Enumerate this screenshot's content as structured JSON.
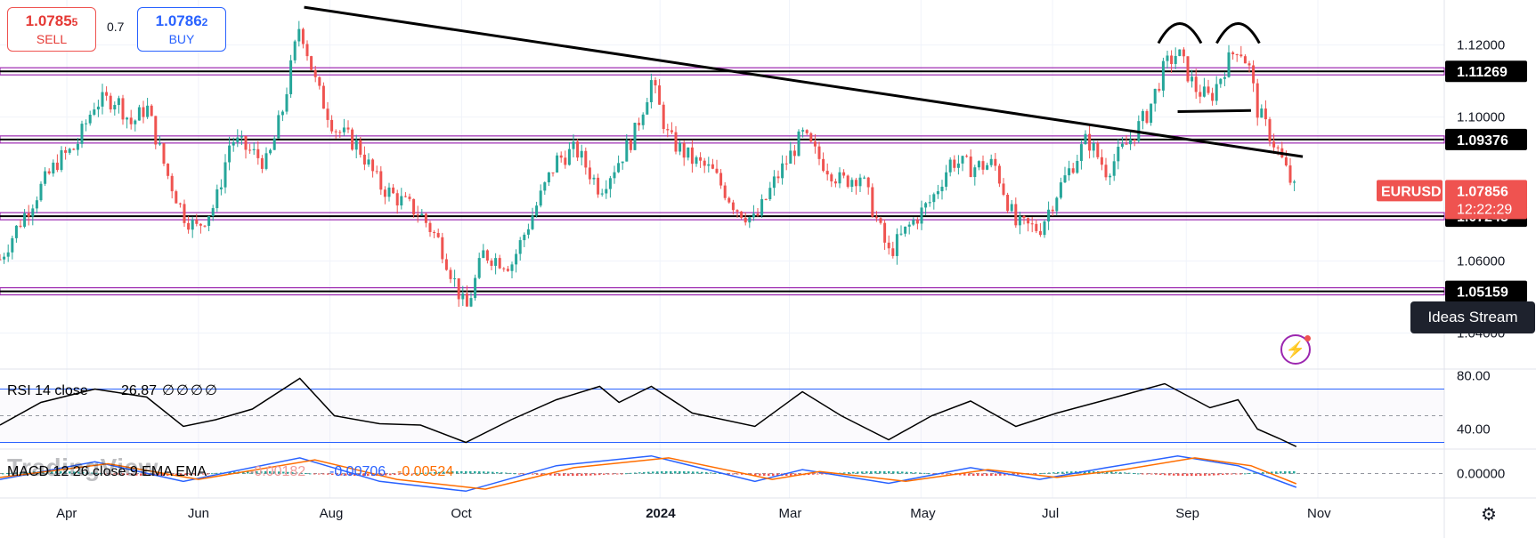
{
  "trade": {
    "sell_price": "1.0785",
    "sell_price_small": "5",
    "sell_label": "SELL",
    "spread": "0.7",
    "buy_price": "1.0786",
    "buy_price_small": "2",
    "buy_label": "BUY"
  },
  "watermark": "TradingView",
  "ideas_stream": "Ideas Stream",
  "colors": {
    "up": "#26a69a",
    "down": "#ef5350",
    "level_line": "#9c27b0",
    "trend_line": "#000000",
    "rsi_band": "#2962ff",
    "macd": "#2962ff",
    "signal": "#ff6d00"
  },
  "chart_data": [
    {
      "type": "candlestick",
      "symbol": "EURUSD",
      "last_price": "1.07856",
      "countdown": "12:22:29",
      "ylim": [
        1.03,
        1.1325
      ],
      "y_ticks": [
        "1.04000",
        "1.06000",
        "1.10000",
        "1.12000"
      ],
      "x_ticks": [
        "Apr",
        "Jun",
        "Aug",
        "Oct",
        "2024",
        "Mar",
        "May",
        "Jul",
        "Sep",
        "Nov"
      ],
      "levels": [
        {
          "value": 1.11269,
          "label": "1.11269"
        },
        {
          "value": 1.09376,
          "label": "1.09376"
        },
        {
          "value": 1.07245,
          "label": "1.07245"
        },
        {
          "value": 1.05159,
          "label": "1.05159"
        }
      ],
      "trendlines": [
        {
          "from": [
            "2023-07-20",
            1.1305
          ],
          "to": [
            "2024-10-25",
            1.089
          ]
        },
        {
          "from": [
            "2024-08-28",
            1.1015
          ],
          "to": [
            "2024-10-01",
            1.1018
          ]
        }
      ],
      "pattern_arcs": [
        {
          "center": "2024-08-29",
          "y": 1.1215
        },
        {
          "center": "2024-09-25",
          "y": 1.1215
        }
      ],
      "closes": [
        [
          "2023-03-01",
          1.0605
        ],
        [
          "2023-03-10",
          1.0705
        ],
        [
          "2023-03-20",
          1.0805
        ],
        [
          "2023-03-28",
          1.088
        ],
        [
          "2023-04-05",
          1.0915
        ],
        [
          "2023-04-14",
          1.104
        ],
        [
          "2023-04-24",
          1.105
        ],
        [
          "2023-05-01",
          1.098
        ],
        [
          "2023-05-08",
          1.103
        ],
        [
          "2023-05-17",
          1.085
        ],
        [
          "2023-05-25",
          1.073
        ],
        [
          "2023-05-31",
          1.069
        ],
        [
          "2023-06-09",
          1.076
        ],
        [
          "2023-06-16",
          1.094
        ],
        [
          "2023-06-26",
          1.09
        ],
        [
          "2023-07-03",
          1.087
        ],
        [
          "2023-07-10",
          1.102
        ],
        [
          "2023-07-18",
          1.126
        ],
        [
          "2023-07-26",
          1.108
        ],
        [
          "2023-08-03",
          1.097
        ],
        [
          "2023-08-14",
          1.092
        ],
        [
          "2023-08-24",
          1.081
        ],
        [
          "2023-09-01",
          1.0775
        ],
        [
          "2023-09-12",
          1.073
        ],
        [
          "2023-09-21",
          1.065
        ],
        [
          "2023-10-03",
          1.046
        ],
        [
          "2023-10-11",
          1.062
        ],
        [
          "2023-10-24",
          1.059
        ],
        [
          "2023-11-03",
          1.073
        ],
        [
          "2023-11-14",
          1.088
        ],
        [
          "2023-11-23",
          1.091
        ],
        [
          "2023-12-04",
          1.08
        ],
        [
          "2023-12-13",
          1.088
        ],
        [
          "2023-12-20",
          1.095
        ],
        [
          "2023-12-28",
          1.11
        ],
        [
          "2024-01-05",
          1.094
        ],
        [
          "2024-01-16",
          1.088
        ],
        [
          "2024-01-25",
          1.085
        ],
        [
          "2024-02-05",
          1.075
        ],
        [
          "2024-02-14",
          1.071
        ],
        [
          "2024-02-23",
          1.082
        ],
        [
          "2024-03-07",
          1.095
        ],
        [
          "2024-03-14",
          1.089
        ],
        [
          "2024-03-25",
          1.082
        ],
        [
          "2024-04-03",
          1.084
        ],
        [
          "2024-04-16",
          1.062
        ],
        [
          "2024-04-26",
          1.07
        ],
        [
          "2024-05-06",
          1.077
        ],
        [
          "2024-05-15",
          1.088
        ],
        [
          "2024-05-24",
          1.086
        ],
        [
          "2024-06-04",
          1.087
        ],
        [
          "2024-06-14",
          1.07
        ],
        [
          "2024-06-25",
          1.069
        ],
        [
          "2024-07-03",
          1.079
        ],
        [
          "2024-07-17",
          1.094
        ],
        [
          "2024-07-26",
          1.085
        ],
        [
          "2024-08-05",
          1.093
        ],
        [
          "2024-08-14",
          1.101
        ],
        [
          "2024-08-22",
          1.114
        ],
        [
          "2024-08-28",
          1.118
        ],
        [
          "2024-09-05",
          1.108
        ],
        [
          "2024-09-12",
          1.105
        ],
        [
          "2024-09-19",
          1.114
        ],
        [
          "2024-09-25",
          1.12
        ],
        [
          "2024-09-30",
          1.114
        ],
        [
          "2024-10-04",
          1.102
        ],
        [
          "2024-10-09",
          1.096
        ],
        [
          "2024-10-14",
          1.09
        ],
        [
          "2024-10-18",
          1.084
        ],
        [
          "2024-10-22",
          1.0786
        ]
      ]
    },
    {
      "type": "line",
      "title": "RSI 14 close",
      "value": "26.87",
      "extras": [
        "∅",
        "∅",
        "∅",
        "∅"
      ],
      "ylim": [
        25,
        85
      ],
      "y_ticks": [
        "40.00",
        "80.00"
      ],
      "bands": [
        30,
        70
      ],
      "midline": 50,
      "series": [
        [
          "2023-03-01",
          43
        ],
        [
          "2023-03-20",
          60
        ],
        [
          "2023-04-14",
          70
        ],
        [
          "2023-05-08",
          64
        ],
        [
          "2023-05-25",
          42
        ],
        [
          "2023-06-09",
          47
        ],
        [
          "2023-06-26",
          55
        ],
        [
          "2023-07-18",
          78
        ],
        [
          "2023-08-03",
          50
        ],
        [
          "2023-08-24",
          44
        ],
        [
          "2023-09-12",
          43
        ],
        [
          "2023-10-03",
          30
        ],
        [
          "2023-10-24",
          47
        ],
        [
          "2023-11-14",
          62
        ],
        [
          "2023-12-04",
          72
        ],
        [
          "2023-12-13",
          60
        ],
        [
          "2023-12-28",
          72
        ],
        [
          "2024-01-16",
          52
        ],
        [
          "2024-02-14",
          42
        ],
        [
          "2024-03-07",
          68
        ],
        [
          "2024-03-25",
          50
        ],
        [
          "2024-04-16",
          32
        ],
        [
          "2024-05-06",
          50
        ],
        [
          "2024-05-24",
          61
        ],
        [
          "2024-06-14",
          42
        ],
        [
          "2024-07-03",
          52
        ],
        [
          "2024-07-26",
          62
        ],
        [
          "2024-08-22",
          74
        ],
        [
          "2024-09-12",
          56
        ],
        [
          "2024-09-25",
          62
        ],
        [
          "2024-10-04",
          40
        ],
        [
          "2024-10-14",
          33
        ],
        [
          "2024-10-22",
          26.87
        ]
      ]
    },
    {
      "type": "line",
      "title": "MACD 12 26 close 9 EMA EMA",
      "values": [
        "-0.00182",
        "-0.00706",
        "-0.00524"
      ],
      "ylim": [
        -0.0125,
        0.0125
      ],
      "y_ticks": [
        "0.00000"
      ],
      "series": [
        {
          "name": "MACD",
          "points": [
            [
              "2023-03-01",
              -0.003
            ],
            [
              "2023-04-14",
              0.006
            ],
            [
              "2023-05-25",
              -0.004
            ],
            [
              "2023-07-18",
              0.008
            ],
            [
              "2023-08-24",
              -0.004
            ],
            [
              "2023-10-03",
              -0.009
            ],
            [
              "2023-11-14",
              0.004
            ],
            [
              "2023-12-28",
              0.009
            ],
            [
              "2024-02-14",
              -0.004
            ],
            [
              "2024-03-07",
              0.002
            ],
            [
              "2024-04-16",
              -0.005
            ],
            [
              "2024-05-24",
              0.003
            ],
            [
              "2024-06-25",
              -0.003
            ],
            [
              "2024-07-26",
              0.003
            ],
            [
              "2024-08-28",
              0.009
            ],
            [
              "2024-09-25",
              0.004
            ],
            [
              "2024-10-22",
              -0.00706
            ]
          ]
        },
        {
          "name": "Signal",
          "points": [
            [
              "2023-03-01",
              -0.002
            ],
            [
              "2023-04-20",
              0.005
            ],
            [
              "2023-06-01",
              -0.003
            ],
            [
              "2023-07-25",
              0.007
            ],
            [
              "2023-09-01",
              -0.003
            ],
            [
              "2023-10-12",
              -0.008
            ],
            [
              "2023-11-22",
              0.003
            ],
            [
              "2024-01-05",
              0.008
            ],
            [
              "2024-02-22",
              -0.003
            ],
            [
              "2024-03-15",
              0.001
            ],
            [
              "2024-04-24",
              -0.004
            ],
            [
              "2024-06-01",
              0.002
            ],
            [
              "2024-07-03",
              -0.002
            ],
            [
              "2024-08-03",
              0.002
            ],
            [
              "2024-09-05",
              0.008
            ],
            [
              "2024-10-01",
              0.004
            ],
            [
              "2024-10-22",
              -0.00524
            ]
          ]
        }
      ]
    }
  ]
}
